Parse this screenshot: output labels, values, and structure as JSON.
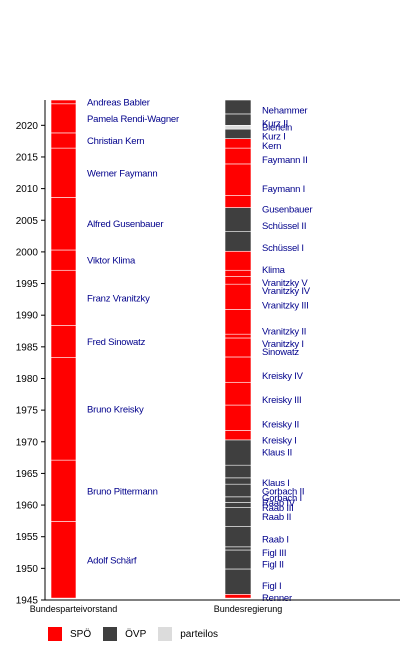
{
  "chart_data": {
    "type": "timeline",
    "title": "",
    "ylim": [
      1945,
      2024
    ],
    "yticks": [
      1945,
      1950,
      1955,
      1960,
      1965,
      1970,
      1975,
      1980,
      1985,
      1990,
      1995,
      2000,
      2005,
      2010,
      2015,
      2020
    ],
    "columns": [
      "Bundesparteivorstand",
      "Bundesregierung"
    ],
    "parties": [
      {
        "key": "spo",
        "name": "SPÖ",
        "color": "#ff0000"
      },
      {
        "key": "ovp",
        "name": "ÖVP",
        "color": "#3f3f3f"
      },
      {
        "key": "parteilos",
        "name": "parteilos",
        "color": "#dcdcdc"
      }
    ],
    "party_leaders": [
      {
        "name": "Adolf Schärf",
        "start": 1945.3,
        "end": 1957.4,
        "party": "spo"
      },
      {
        "name": "Bruno Pittermann",
        "start": 1957.4,
        "end": 1967.1,
        "party": "spo"
      },
      {
        "name": "Bruno Kreisky",
        "start": 1967.1,
        "end": 1983.3,
        "party": "spo"
      },
      {
        "name": "Fred Sinowatz",
        "start": 1983.3,
        "end": 1988.4,
        "party": "spo"
      },
      {
        "name": "Franz Vranitzky",
        "start": 1988.4,
        "end": 1997.1,
        "party": "spo"
      },
      {
        "name": "Viktor Klima",
        "start": 1997.1,
        "end": 2000.3,
        "party": "spo"
      },
      {
        "name": "Alfred Gusenbauer",
        "start": 2000.3,
        "end": 2008.6,
        "party": "spo"
      },
      {
        "name": "Werner Faymann",
        "start": 2008.6,
        "end": 2016.4,
        "party": "spo"
      },
      {
        "name": "Christian Kern",
        "start": 2016.4,
        "end": 2018.8,
        "party": "spo"
      },
      {
        "name": "Pamela Rendi-Wagner",
        "start": 2018.8,
        "end": 2023.4,
        "party": "spo"
      },
      {
        "name": "Andreas Babler",
        "start": 2023.4,
        "end": 2024,
        "party": "spo"
      }
    ],
    "governments": [
      {
        "name": "Renner",
        "start": 1945.3,
        "end": 1945.9,
        "party": "spo",
        "label_y": 1945.4
      },
      {
        "name": "Figl I",
        "start": 1945.9,
        "end": 1949.9,
        "party": "ovp",
        "label_y": 1947.3
      },
      {
        "name": "Figl II",
        "start": 1949.9,
        "end": 1952.9,
        "party": "ovp",
        "label_y": 1950.7
      },
      {
        "name": "Figl III",
        "start": 1952.9,
        "end": 1953.4,
        "party": "ovp",
        "label_y": 1952.5
      },
      {
        "name": "Raab I",
        "start": 1953.4,
        "end": 1956.6,
        "party": "ovp",
        "label_y": 1954.6
      },
      {
        "name": "Raab II",
        "start": 1956.6,
        "end": 1959.6,
        "party": "ovp",
        "label_y": 1958.2
      },
      {
        "name": "Raab III",
        "start": 1959.6,
        "end": 1960.4,
        "party": "ovp",
        "label_y": 1959.6
      },
      {
        "name": "Raab IV",
        "start": 1960.4,
        "end": 1961.3,
        "party": "ovp",
        "label_y": 1960.4
      },
      {
        "name": "Gorbach I",
        "start": 1961.3,
        "end": 1963.3,
        "party": "ovp",
        "label_y": 1961.2
      },
      {
        "name": "Gorbach II",
        "start": 1963.3,
        "end": 1964.3,
        "party": "ovp",
        "label_y": 1962.2
      },
      {
        "name": "Klaus I",
        "start": 1964.3,
        "end": 1966.3,
        "party": "ovp",
        "label_y": 1963.6
      },
      {
        "name": "Klaus II",
        "start": 1966.3,
        "end": 1970.3,
        "party": "ovp",
        "label_y": 1968.4
      },
      {
        "name": "Kreisky I",
        "start": 1970.3,
        "end": 1971.8,
        "party": "spo",
        "label_y": 1970.3
      },
      {
        "name": "Kreisky II",
        "start": 1971.8,
        "end": 1975.8,
        "party": "spo",
        "label_y": 1972.8
      },
      {
        "name": "Kreisky III",
        "start": 1975.8,
        "end": 1979.4,
        "party": "spo",
        "label_y": 1976.7
      },
      {
        "name": "Kreisky IV",
        "start": 1979.4,
        "end": 1983.4,
        "party": "spo",
        "label_y": 1980.5
      },
      {
        "name": "Sinowatz",
        "start": 1983.4,
        "end": 1986.4,
        "party": "spo",
        "label_y": 1984.3
      },
      {
        "name": "Vranitzky I",
        "start": 1986.4,
        "end": 1987.0,
        "party": "spo",
        "label_y": 1985.5
      },
      {
        "name": "Vranitzky II",
        "start": 1987.0,
        "end": 1990.9,
        "party": "spo",
        "label_y": 1987.5
      },
      {
        "name": "Vranitzky III",
        "start": 1990.9,
        "end": 1994.9,
        "party": "spo",
        "label_y": 1991.6
      },
      {
        "name": "Vranitzky IV",
        "start": 1994.9,
        "end": 1996.1,
        "party": "spo",
        "label_y": 1993.9
      },
      {
        "name": "Vranitzky V",
        "start": 1996.1,
        "end": 1997.1,
        "party": "spo",
        "label_y": 1995.2
      },
      {
        "name": "Klima",
        "start": 1997.1,
        "end": 2000.1,
        "party": "spo",
        "label_y": 1997.2
      },
      {
        "name": "Schüssel I",
        "start": 2000.1,
        "end": 2003.2,
        "party": "ovp",
        "label_y": 2000.7
      },
      {
        "name": "Schüssel II",
        "start": 2003.2,
        "end": 2007.0,
        "party": "ovp",
        "label_y": 2004.2
      },
      {
        "name": "Gusenbauer",
        "start": 2007.0,
        "end": 2008.9,
        "party": "spo",
        "label_y": 2006.8
      },
      {
        "name": "Faymann I",
        "start": 2008.9,
        "end": 2013.9,
        "party": "spo",
        "label_y": 2010.0
      },
      {
        "name": "Faymann II",
        "start": 2013.9,
        "end": 2016.4,
        "party": "spo",
        "label_y": 2014.6
      },
      {
        "name": "Kern",
        "start": 2016.4,
        "end": 2017.9,
        "party": "spo",
        "label_y": 2016.8
      },
      {
        "name": "Kurz I",
        "start": 2017.9,
        "end": 2019.4,
        "party": "ovp",
        "label_y": 2018.3
      },
      {
        "name": "Bierlein",
        "start": 2019.4,
        "end": 2020.0,
        "party": "parteilos",
        "label_y": 2019.7
      },
      {
        "name": "Kurz II",
        "start": 2020.0,
        "end": 2021.8,
        "party": "ovp",
        "label_y": 2020.4
      },
      {
        "name": "Nehammer",
        "start": 2021.8,
        "end": 2024,
        "party": "ovp",
        "label_y": 2022.4
      }
    ]
  }
}
